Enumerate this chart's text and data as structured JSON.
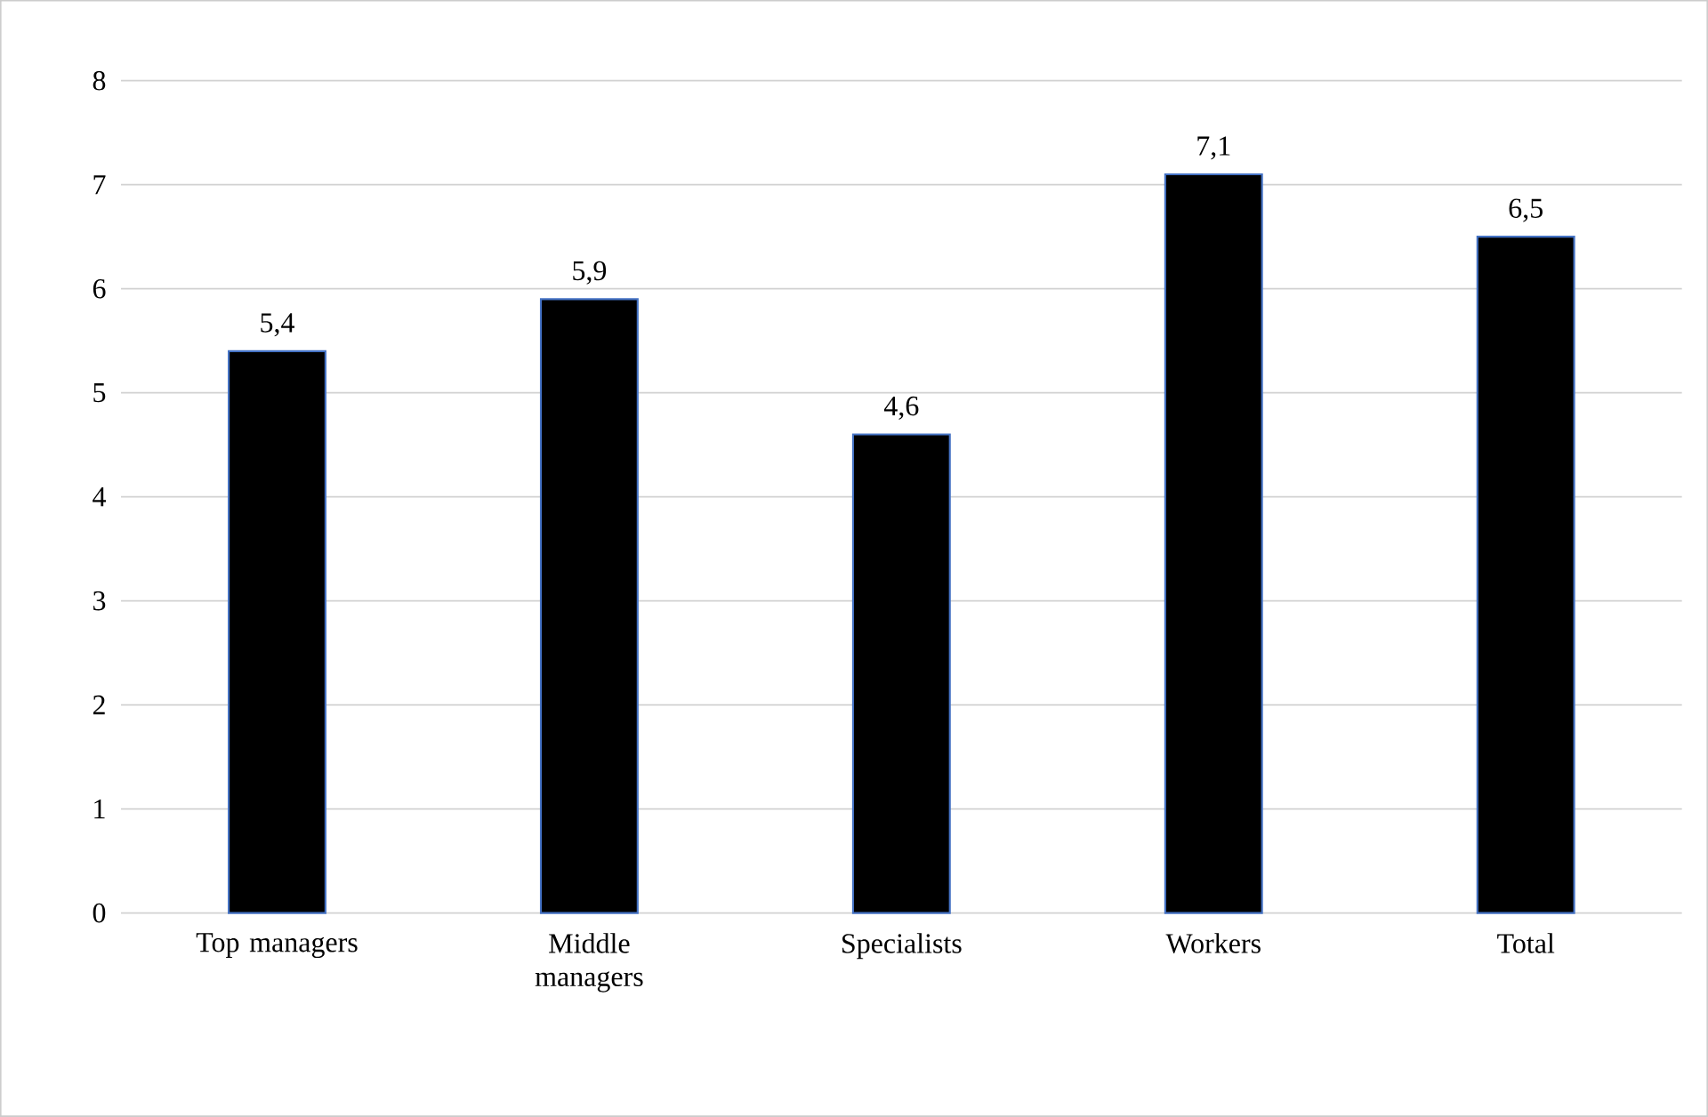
{
  "chart_data": {
    "type": "bar",
    "categories": [
      "Top managers",
      "Middle managers",
      "Specialists",
      "Workers",
      "Total"
    ],
    "values": [
      5.4,
      5.9,
      4.6,
      7.1,
      6.5
    ],
    "value_labels": [
      "5,4",
      "5,9",
      "4,6",
      "7,1",
      "6,5"
    ],
    "color": "#000000",
    "ylim": [
      0,
      8
    ],
    "yticks": [
      0,
      1,
      2,
      3,
      4,
      5,
      6,
      7,
      8
    ],
    "grid": "y"
  }
}
